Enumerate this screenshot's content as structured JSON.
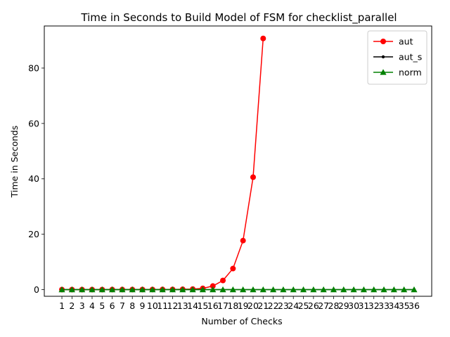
{
  "chart_data": {
    "type": "line",
    "title": "Time in Seconds to Build Model of FSM for checklist_parallel",
    "xlabel": "Number of Checks",
    "ylabel": "Time in Seconds",
    "ylim": [
      -2.4,
      95.2
    ],
    "yticks": [
      0,
      20,
      40,
      60,
      80
    ],
    "x": [
      1,
      2,
      3,
      4,
      5,
      6,
      7,
      8,
      9,
      10,
      11,
      12,
      13,
      14,
      15,
      16,
      17,
      18,
      19,
      20,
      21,
      22,
      23,
      24,
      25,
      26,
      27,
      28,
      29,
      30,
      31,
      32,
      33,
      34,
      35,
      36
    ],
    "legend_position": "top-right",
    "grid": false,
    "series": [
      {
        "name": "aut",
        "color": "#ff0000",
        "marker": "circle",
        "x": [
          1,
          2,
          3,
          4,
          5,
          6,
          7,
          8,
          9,
          10,
          11,
          12,
          13,
          14,
          15,
          16,
          17,
          18,
          19,
          20,
          21
        ],
        "values": [
          0.02,
          0.02,
          0.02,
          0.02,
          0.02,
          0.03,
          0.03,
          0.03,
          0.04,
          0.05,
          0.06,
          0.08,
          0.12,
          0.2,
          0.45,
          1.3,
          3.3,
          7.6,
          17.7,
          40.6,
          90.7
        ]
      },
      {
        "name": "aut_s",
        "color": "#000000",
        "marker": "point",
        "x": [
          1,
          2,
          3,
          4,
          5,
          6,
          7,
          8,
          9,
          10,
          11,
          12,
          13,
          14,
          15,
          16,
          17,
          18,
          19,
          20,
          21,
          22,
          23,
          24,
          25,
          26,
          27,
          28,
          29,
          30,
          31,
          32,
          33,
          34,
          35,
          36
        ],
        "values": [
          0,
          0,
          0,
          0,
          0,
          0,
          0,
          0,
          0,
          0,
          0,
          0,
          0,
          0,
          0,
          0,
          0,
          0,
          0,
          0,
          0,
          0,
          0,
          0,
          0,
          0,
          0,
          0,
          0,
          0,
          0,
          0,
          0,
          0,
          0,
          0
        ]
      },
      {
        "name": "norm",
        "color": "#008000",
        "marker": "triangle",
        "x": [
          1,
          2,
          3,
          4,
          5,
          6,
          7,
          8,
          9,
          10,
          11,
          12,
          13,
          14,
          15,
          16,
          17,
          18,
          19,
          20,
          21,
          22,
          23,
          24,
          25,
          26,
          27,
          28,
          29,
          30,
          31,
          32,
          33,
          34,
          35,
          36
        ],
        "values": [
          0,
          0,
          0,
          0,
          0,
          0,
          0,
          0,
          0,
          0,
          0,
          0,
          0,
          0,
          0,
          0,
          0,
          0,
          0,
          0,
          0,
          0,
          0,
          0,
          0,
          0,
          0,
          0,
          0,
          0,
          0,
          0,
          0,
          0,
          0,
          0
        ]
      }
    ]
  }
}
